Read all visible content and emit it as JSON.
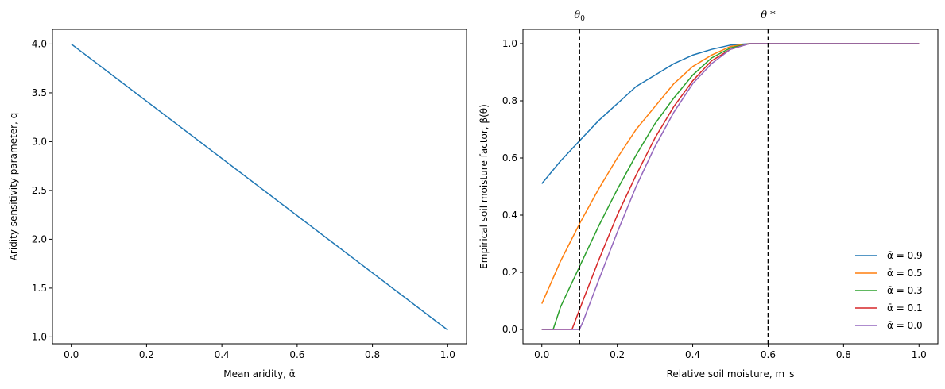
{
  "chart_data": [
    {
      "type": "line",
      "title": "",
      "xlabel": "Mean aridity, ᾱ",
      "ylabel": "Aridity sensitivity parameter, q",
      "xlim": [
        -0.05,
        1.05
      ],
      "ylim": [
        0.93,
        4.15
      ],
      "xticks": [
        0.0,
        0.2,
        0.4,
        0.6,
        0.8,
        1.0
      ],
      "xtick_labels": [
        "0.0",
        "0.2",
        "0.4",
        "0.6",
        "0.8",
        "1.0"
      ],
      "yticks": [
        1.0,
        1.5,
        2.0,
        2.5,
        3.0,
        3.5,
        4.0
      ],
      "ytick_labels": [
        "1.0",
        "1.5",
        "2.0",
        "2.5",
        "3.0",
        "3.5",
        "4.0"
      ],
      "grid": false,
      "series": [
        {
          "color": "#1f77b4",
          "x": [
            0.0,
            1.0
          ],
          "y": [
            4.0,
            1.07
          ]
        }
      ]
    },
    {
      "type": "line",
      "title": "",
      "xlabel": "Relative soil moisture, m_s",
      "ylabel": "Empirical soil moisture factor, β(θ)",
      "xlim": [
        -0.05,
        1.05
      ],
      "ylim": [
        -0.05,
        1.05
      ],
      "xticks": [
        0.0,
        0.2,
        0.4,
        0.6,
        0.8,
        1.0
      ],
      "xtick_labels": [
        "0.0",
        "0.2",
        "0.4",
        "0.6",
        "0.8",
        "1.0"
      ],
      "yticks": [
        0.0,
        0.2,
        0.4,
        0.6,
        0.8,
        1.0
      ],
      "ytick_labels": [
        "0.0",
        "0.2",
        "0.4",
        "0.6",
        "0.8",
        "1.0"
      ],
      "grid": false,
      "legend": "lower-right",
      "annotations": [
        {
          "text": "θ",
          "sub": "0",
          "x": 0.1,
          "style": "dashed-vline"
        },
        {
          "text": "θ *",
          "sub": "",
          "x": 0.6,
          "style": "dashed-vline"
        }
      ],
      "series": [
        {
          "name": "ᾱ = 0.9",
          "color": "#1f77b4",
          "x": [
            0.0,
            0.05,
            0.1,
            0.15,
            0.2,
            0.25,
            0.3,
            0.35,
            0.4,
            0.45,
            0.5,
            0.55,
            0.6,
            1.0
          ],
          "y": [
            0.51,
            0.59,
            0.66,
            0.73,
            0.79,
            0.85,
            0.89,
            0.93,
            0.96,
            0.98,
            0.995,
            1.0,
            1.0,
            1.0
          ]
        },
        {
          "name": "ᾱ = 0.5",
          "color": "#ff7f0e",
          "x": [
            0.0,
            0.05,
            0.1,
            0.15,
            0.2,
            0.25,
            0.3,
            0.35,
            0.4,
            0.45,
            0.5,
            0.55,
            0.6,
            1.0
          ],
          "y": [
            0.09,
            0.24,
            0.37,
            0.49,
            0.6,
            0.7,
            0.78,
            0.86,
            0.92,
            0.96,
            0.99,
            1.0,
            1.0,
            1.0
          ]
        },
        {
          "name": "ᾱ = 0.3",
          "color": "#2ca02c",
          "x": [
            0.0,
            0.03,
            0.05,
            0.1,
            0.15,
            0.2,
            0.25,
            0.3,
            0.35,
            0.4,
            0.45,
            0.5,
            0.55,
            0.6,
            1.0
          ],
          "y": [
            0.0,
            0.0,
            0.08,
            0.22,
            0.36,
            0.49,
            0.61,
            0.72,
            0.81,
            0.89,
            0.95,
            0.985,
            1.0,
            1.0,
            1.0
          ]
        },
        {
          "name": "ᾱ = 0.1",
          "color": "#d62728",
          "x": [
            0.0,
            0.08,
            0.1,
            0.15,
            0.2,
            0.25,
            0.3,
            0.35,
            0.4,
            0.45,
            0.5,
            0.55,
            0.6,
            1.0
          ],
          "y": [
            0.0,
            0.0,
            0.07,
            0.24,
            0.4,
            0.54,
            0.67,
            0.78,
            0.87,
            0.94,
            0.98,
            1.0,
            1.0,
            1.0
          ]
        },
        {
          "name": "ᾱ = 0.0",
          "color": "#9467bd",
          "x": [
            0.0,
            0.1,
            0.11,
            0.15,
            0.2,
            0.25,
            0.3,
            0.35,
            0.4,
            0.45,
            0.5,
            0.55,
            0.6,
            1.0
          ],
          "y": [
            0.0,
            0.0,
            0.03,
            0.17,
            0.34,
            0.5,
            0.64,
            0.76,
            0.86,
            0.93,
            0.98,
            1.0,
            1.0,
            1.0
          ]
        }
      ]
    }
  ]
}
